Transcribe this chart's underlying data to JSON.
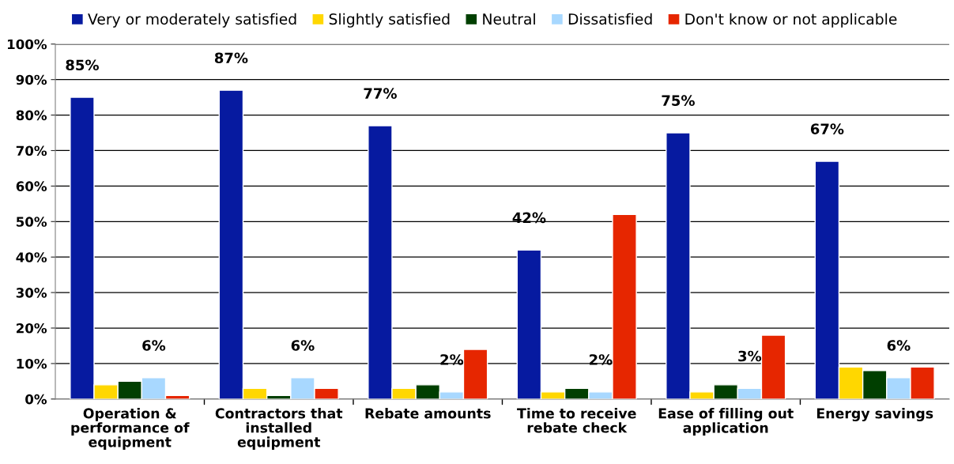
{
  "chart_data": {
    "type": "bar",
    "categories": [
      "Operation & performance of equipment",
      "Contractors that installed equipment",
      "Rebate amounts",
      "Time to receive rebate check",
      "Ease of filling out application",
      "Energy savings"
    ],
    "series": [
      {
        "name": "Very or moderately satisfied",
        "color": "#061aa0",
        "values": [
          85,
          87,
          77,
          42,
          75,
          67
        ],
        "value_labels": [
          "85%",
          "87%",
          "77%",
          "42%",
          "75%",
          "67%"
        ]
      },
      {
        "name": "Slightly satisfied",
        "color": "#ffd700",
        "values": [
          4,
          3,
          3,
          2,
          2,
          9
        ]
      },
      {
        "name": "Neutral",
        "color": "#003f00",
        "values": [
          5,
          1,
          4,
          3,
          4,
          8
        ]
      },
      {
        "name": "Dissatisfied",
        "color": "#a8d8ff",
        "values": [
          6,
          6,
          2,
          2,
          3,
          6
        ],
        "value_labels": [
          "6%",
          "6%",
          "2%",
          "2%",
          "3%",
          "6%"
        ]
      },
      {
        "name": "Don't know or not applicable",
        "color": "#e62600",
        "values": [
          1,
          3,
          14,
          52,
          18,
          9
        ]
      }
    ],
    "ylim": [
      0,
      100
    ],
    "yticks": [
      {
        "value": 0,
        "label": "0%"
      },
      {
        "value": 10,
        "label": "10%"
      },
      {
        "value": 20,
        "label": "20%"
      },
      {
        "value": 30,
        "label": "30%"
      },
      {
        "value": 40,
        "label": "40%"
      },
      {
        "value": 50,
        "label": "50%"
      },
      {
        "value": 60,
        "label": "60%"
      },
      {
        "value": 70,
        "label": "70%"
      },
      {
        "value": 80,
        "label": "80%"
      },
      {
        "value": 90,
        "label": "90%"
      },
      {
        "value": 100,
        "label": "100%"
      }
    ],
    "grid": "y",
    "legend": "top"
  }
}
